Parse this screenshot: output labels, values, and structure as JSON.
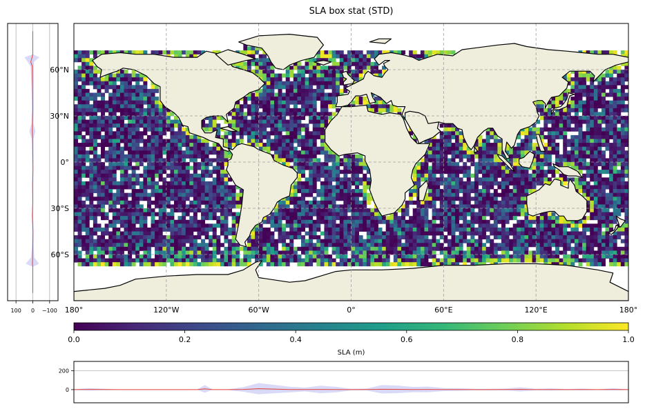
{
  "figure": {
    "title": "SLA box stat (STD)"
  },
  "colors": {
    "land": "#efeedc",
    "coast": "#000000",
    "grid": "#9e9e9e",
    "profile_line": "#e8433a",
    "profile_fill": "#c9c9f5",
    "viridis": [
      "#440154",
      "#482878",
      "#3e4989",
      "#31688e",
      "#26828e",
      "#1f9e89",
      "#35b779",
      "#6ece58",
      "#b5de2b",
      "#fde725"
    ]
  },
  "chart_data": [
    {
      "type": "heatmap",
      "name": "SLA standard deviation map",
      "title": "SLA box stat (STD)",
      "projection": "PlateCarree",
      "x_ticks": [
        "180°",
        "120°W",
        "60°W",
        "0°",
        "60°E",
        "120°E",
        "180°"
      ],
      "x_tick_values": [
        -180,
        -120,
        -60,
        0,
        60,
        120,
        180
      ],
      "y_ticks": [
        "60°N",
        "30°N",
        "0°",
        "30°S",
        "60°S"
      ],
      "y_tick_values": [
        60,
        30,
        0,
        -30,
        -60
      ],
      "xlim": [
        -180,
        180
      ],
      "ylim": [
        -90,
        90
      ],
      "grid": "dashed",
      "value_range": [
        0,
        1
      ],
      "colormap": "viridis",
      "pattern": "mostly low values 0.0–0.3 over open ocean; high values near 1.0 along coastlines and high latitudes; no data south of 68°S"
    },
    {
      "type": "heatmap",
      "name": "colorbar",
      "orientation": "horizontal",
      "label": "SLA (m)",
      "range": [
        0.0,
        1.0
      ],
      "ticks": [
        "0.0",
        "0.2",
        "0.4",
        "0.6",
        "0.8",
        "1.0"
      ]
    },
    {
      "type": "line",
      "name": "latitude profile",
      "orientation": "vertical",
      "x_ticks": [
        "100",
        "0",
        "−100"
      ],
      "x_tick_values": [
        100,
        0,
        -100
      ],
      "xlim": [
        150,
        -150
      ],
      "y": [
        -85,
        -68,
        -66,
        -62,
        -55,
        -45,
        -35,
        -25,
        -15,
        -5,
        5,
        15,
        20,
        25,
        35,
        45,
        55,
        62,
        65,
        68,
        70,
        85
      ],
      "x": [
        0,
        0,
        2,
        1,
        0,
        -1,
        2,
        0,
        1,
        -1,
        0,
        1,
        3,
        2,
        0,
        1,
        2,
        3,
        12,
        5,
        0,
        0
      ],
      "band": [
        0,
        0,
        40,
        10,
        5,
        4,
        4,
        3,
        4,
        3,
        4,
        5,
        18,
        6,
        5,
        6,
        8,
        10,
        18,
        45,
        0,
        0
      ]
    },
    {
      "type": "line",
      "name": "longitude profile",
      "y_ticks": [
        "200",
        "0"
      ],
      "y_tick_values": [
        200,
        0
      ],
      "ylim": [
        -140,
        300
      ],
      "x": [
        -180,
        -170,
        -160,
        -150,
        -140,
        -130,
        -110,
        -100,
        -95,
        -90,
        -80,
        -70,
        -60,
        -50,
        -40,
        -30,
        -20,
        -10,
        0,
        10,
        20,
        30,
        40,
        50,
        60,
        70,
        80,
        90,
        100,
        110,
        120,
        130,
        140,
        150,
        160,
        170,
        180
      ],
      "values": [
        0,
        2,
        1,
        0,
        0,
        0,
        0,
        0,
        8,
        0,
        0,
        2,
        10,
        6,
        1,
        1,
        2,
        1,
        0,
        1,
        4,
        3,
        1,
        2,
        1,
        1,
        0,
        0,
        1,
        3,
        0,
        1,
        0,
        1,
        0,
        2,
        0
      ],
      "band": [
        4,
        14,
        8,
        3,
        2,
        2,
        2,
        2,
        40,
        3,
        4,
        25,
        60,
        45,
        30,
        20,
        40,
        30,
        8,
        10,
        45,
        40,
        28,
        30,
        16,
        14,
        8,
        8,
        10,
        22,
        8,
        12,
        6,
        10,
        4,
        12,
        4
      ]
    }
  ]
}
